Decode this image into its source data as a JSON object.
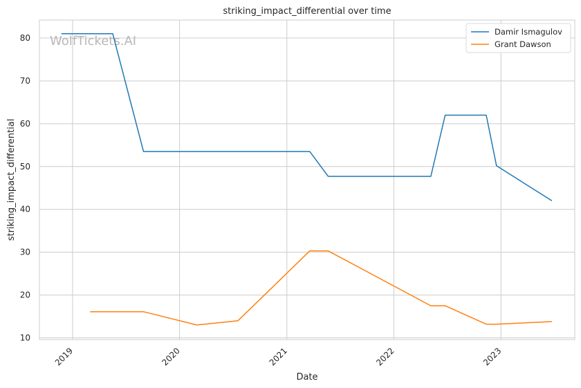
{
  "chart_data": {
    "type": "line",
    "title": "striking_impact_differential over time",
    "xlabel": "Date",
    "ylabel": "striking_impact_differential",
    "watermark": "WolfTickets.AI",
    "x_ticks": [
      "2019",
      "2020",
      "2021",
      "2022",
      "2023"
    ],
    "y_ticks": [
      10,
      20,
      30,
      40,
      50,
      60,
      70,
      80
    ],
    "xlim": [
      "2018-09-10",
      "2023-09-10"
    ],
    "ylim": [
      9.6,
      84.2
    ],
    "grid": true,
    "legend_position": "top-right",
    "series": [
      {
        "name": "Damir Ismagulov",
        "color": "#1f77b4",
        "points": [
          {
            "x": "2018-11-24",
            "y": 81.0
          },
          {
            "x": "2019-05-18",
            "y": 81.0
          },
          {
            "x": "2019-08-31",
            "y": 53.5
          },
          {
            "x": "2021-03-20",
            "y": 53.5
          },
          {
            "x": "2021-05-22",
            "y": 47.7
          },
          {
            "x": "2022-05-07",
            "y": 47.7
          },
          {
            "x": "2022-06-25",
            "y": 62.0
          },
          {
            "x": "2022-11-12",
            "y": 62.0
          },
          {
            "x": "2022-12-17",
            "y": 50.2
          },
          {
            "x": "2023-06-24",
            "y": 42.0
          }
        ]
      },
      {
        "name": "Grant Dawson",
        "color": "#ff7f0e",
        "points": [
          {
            "x": "2019-03-02",
            "y": 16.1
          },
          {
            "x": "2019-08-31",
            "y": 16.1
          },
          {
            "x": "2020-02-29",
            "y": 13.0
          },
          {
            "x": "2020-07-18",
            "y": 14.0
          },
          {
            "x": "2021-03-20",
            "y": 30.3
          },
          {
            "x": "2021-05-22",
            "y": 30.3
          },
          {
            "x": "2022-05-07",
            "y": 17.5
          },
          {
            "x": "2022-06-25",
            "y": 17.5
          },
          {
            "x": "2022-11-12",
            "y": 13.2
          },
          {
            "x": "2022-12-17",
            "y": 13.2
          },
          {
            "x": "2023-06-24",
            "y": 13.8
          }
        ]
      }
    ]
  }
}
